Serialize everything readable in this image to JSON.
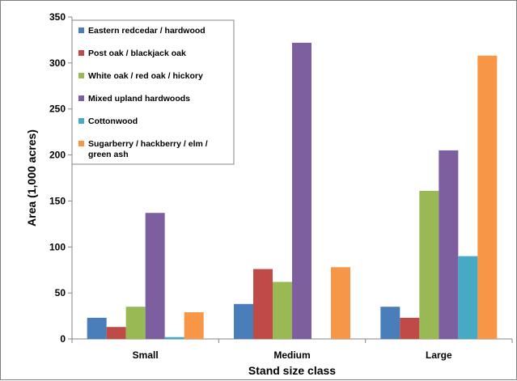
{
  "chart_data": {
    "type": "bar",
    "title": "",
    "xlabel": "Stand size class",
    "ylabel": "Area (1,000 acres)",
    "ylim": [
      0,
      350
    ],
    "yticks": [
      0,
      50,
      100,
      150,
      200,
      250,
      300,
      350
    ],
    "categories": [
      "Small",
      "Medium",
      "Large"
    ],
    "grid": false,
    "legend_position": "top-left",
    "series": [
      {
        "name": "Eastern redcedar / hardwood",
        "legend_lines": [
          "Eastern redcedar / hardwood"
        ],
        "color": "#4a7ebb",
        "values": [
          23,
          38,
          35
        ]
      },
      {
        "name": "Post oak / blackjack oak",
        "legend_lines": [
          "Post oak / blackjack oak"
        ],
        "color": "#be4b48",
        "values": [
          13,
          76,
          23
        ]
      },
      {
        "name": "White oak / red oak / hickory",
        "legend_lines": [
          "White oak / red oak / hickory"
        ],
        "color": "#98b954",
        "values": [
          35,
          62,
          161
        ]
      },
      {
        "name": "Mixed upland hardwoods",
        "legend_lines": [
          "Mixed upland hardwoods"
        ],
        "color": "#7d5fa0",
        "values": [
          137,
          322,
          205
        ]
      },
      {
        "name": "Cottonwood",
        "legend_lines": [
          "Cottonwood"
        ],
        "color": "#46aac5",
        "values": [
          2,
          0,
          90
        ]
      },
      {
        "name": "Sugarberry / hackberry / elm / green ash",
        "legend_lines": [
          "Sugarberry / hackberry / elm /",
          "green ash"
        ],
        "color": "#f79646",
        "values": [
          29,
          78,
          308
        ]
      }
    ]
  }
}
